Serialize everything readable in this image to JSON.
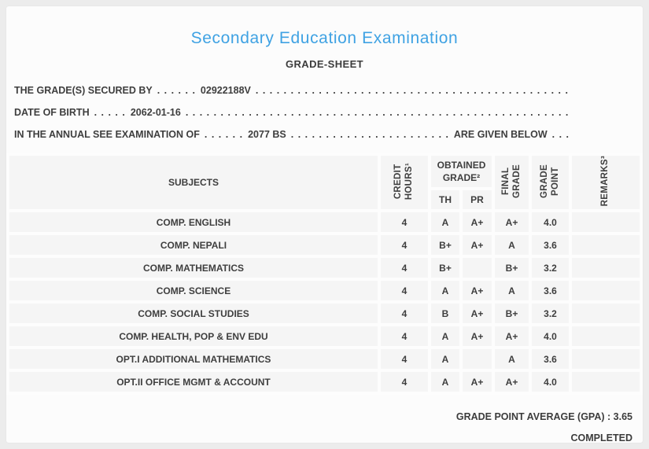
{
  "header": {
    "title": "Secondary Education Examination",
    "subtitle": "GRADE-SHEET"
  },
  "info": {
    "secured_by": {
      "label": "THE GRADE(S) SECURED BY",
      "dots_before": ". . . . . .",
      "value": "02922188V",
      "dots_after": ". . . . . . . . . . . . . . . . . . . . . . . . . . . . . . . . . . . . . . . . . . . . . . . . . . . . . . . . . . . . . . . . . . . . . . . . . . . . . . . ."
    },
    "date_of_birth": {
      "label": "DATE OF BIRTH",
      "dots_before": ". . . . .",
      "value": "2062-01-16",
      "dots_after": ". . . . . . . . . . . . . . . . . . . . . . . . . . . . . . . . . . . . . . . . . . . . . . . . . . . . . . . . . . . . . . . . . . . . . . . . . . . . . . . ."
    },
    "examination_of": {
      "label": "IN THE ANNUAL SEE EXAMINATION OF",
      "dots_before": ". . . . . .",
      "value": "2077 BS",
      "dots_middle": ". . . . . . . . . . . . . . . . . . . . . . . . . . . . . . . . . . . . . . . . . . . . . . . . . . . . . . . . . . . .",
      "suffix": "ARE GIVEN BELOW",
      "dots_end": ". . ."
    }
  },
  "table": {
    "header": {
      "subjects": "SUBJECTS",
      "credit_hours_lines": [
        "CREDIT",
        "HOURS¹"
      ],
      "obtained_grade_lines": [
        "OBTAINED",
        "GRADE²"
      ],
      "th": "TH",
      "pr": "PR",
      "final_grade_lines": [
        "FINAL",
        "GRADE"
      ],
      "grade_point_lines": [
        "GRADE",
        "POINT"
      ],
      "remarks": "REMARKS³"
    },
    "rows": [
      {
        "subject": "COMP. ENGLISH",
        "credit": "4",
        "th": "A",
        "pr": "A+",
        "final": "A+",
        "gp": "4.0",
        "remarks": ""
      },
      {
        "subject": "COMP. NEPALI",
        "credit": "4",
        "th": "B+",
        "pr": "A+",
        "final": "A",
        "gp": "3.6",
        "remarks": ""
      },
      {
        "subject": "COMP. MATHEMATICS",
        "credit": "4",
        "th": "B+",
        "pr": "",
        "final": "B+",
        "gp": "3.2",
        "remarks": ""
      },
      {
        "subject": "COMP. SCIENCE",
        "credit": "4",
        "th": "A",
        "pr": "A+",
        "final": "A",
        "gp": "3.6",
        "remarks": ""
      },
      {
        "subject": "COMP. SOCIAL STUDIES",
        "credit": "4",
        "th": "B",
        "pr": "A+",
        "final": "B+",
        "gp": "3.2",
        "remarks": ""
      },
      {
        "subject": "COMP. HEALTH, POP & ENV EDU",
        "credit": "4",
        "th": "A",
        "pr": "A+",
        "final": "A+",
        "gp": "4.0",
        "remarks": ""
      },
      {
        "subject": "OPT.I ADDITIONAL MATHEMATICS",
        "credit": "4",
        "th": "A",
        "pr": "",
        "final": "A",
        "gp": "3.6",
        "remarks": ""
      },
      {
        "subject": "OPT.II OFFICE MGMT & ACCOUNT",
        "credit": "4",
        "th": "A",
        "pr": "A+",
        "final": "A+",
        "gp": "4.0",
        "remarks": ""
      }
    ]
  },
  "footer": {
    "gpa_label": "GRADE POINT AVERAGE (GPA) :",
    "gpa_value": "3.65",
    "status": "COMPLETED"
  },
  "colors": {
    "title_accent": "#3fa2e3",
    "text": "#3e3e3e",
    "cell_bg": "#f5f5f5",
    "card_bg": "#fcfcfc",
    "page_bg": "#ececec"
  }
}
